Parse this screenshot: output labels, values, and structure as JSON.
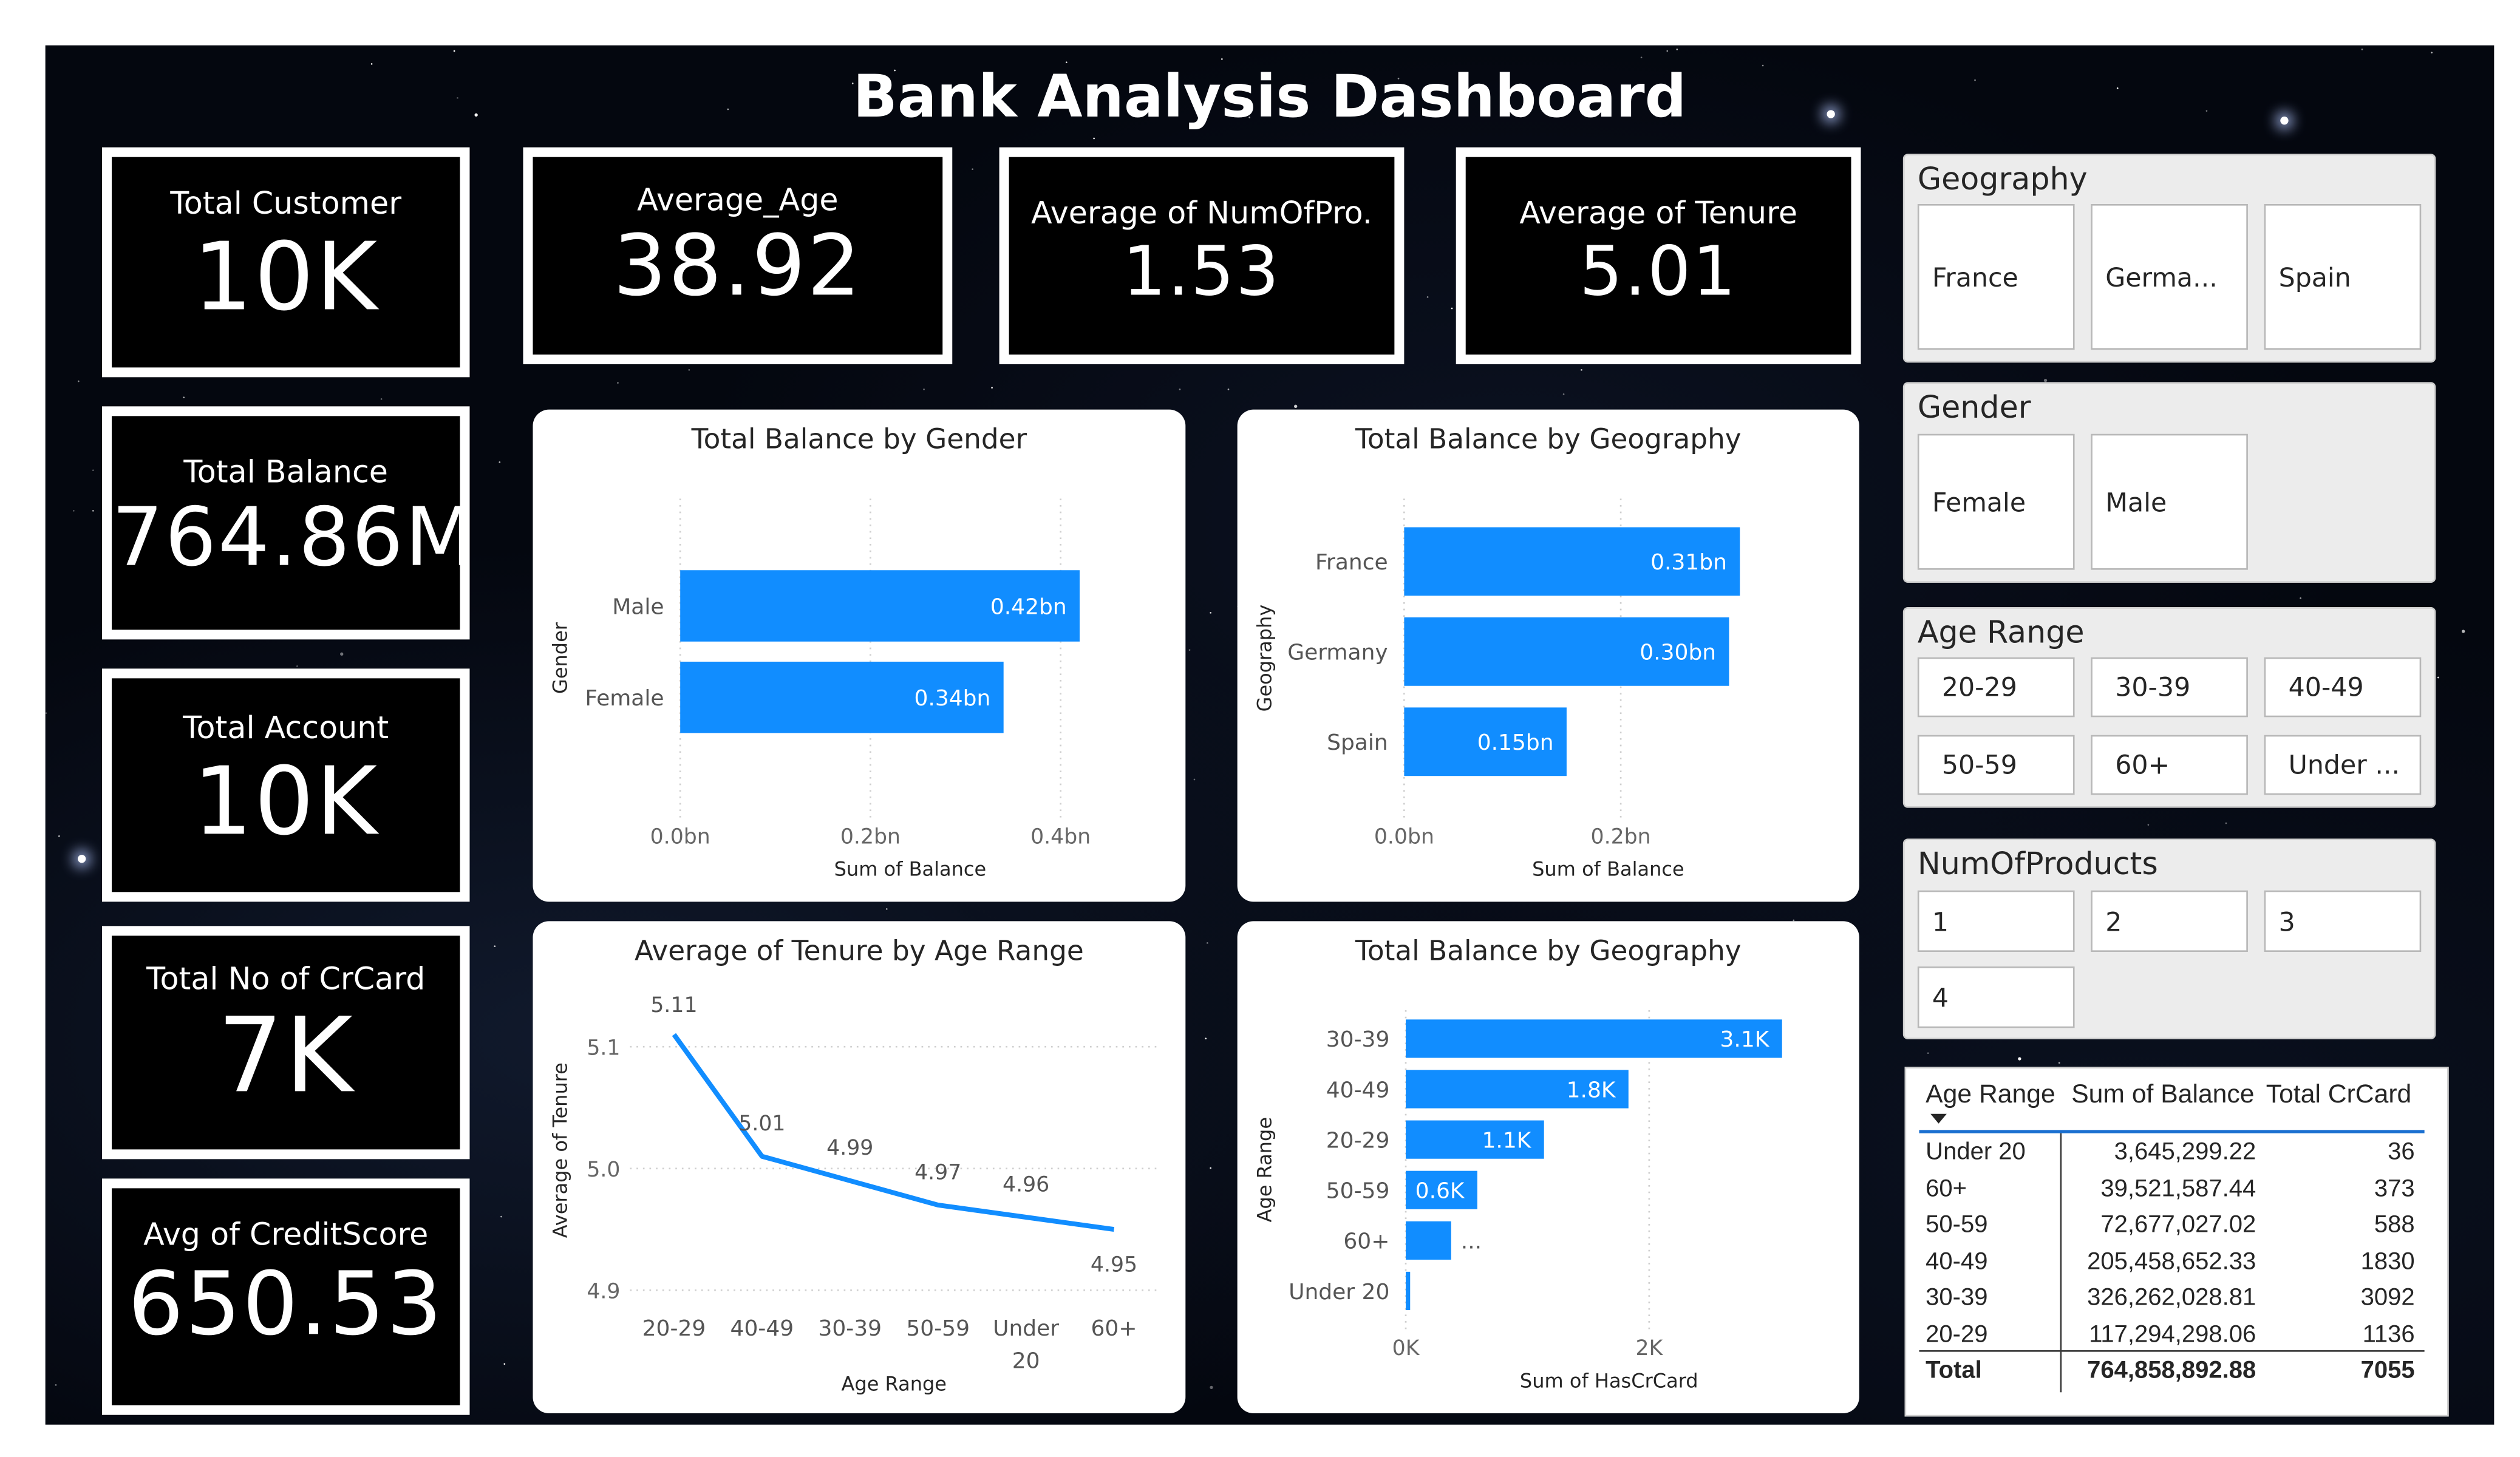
{
  "title": "Bank Analysis Dashboard",
  "kpis": {
    "total_customer": {
      "label": "Total Customer",
      "value": "10K"
    },
    "total_balance": {
      "label": "Total Balance",
      "value": "764.86M"
    },
    "total_account": {
      "label": "Total Account",
      "value": "10K"
    },
    "total_crcard": {
      "label": "Total No of CrCard",
      "value": "7K"
    },
    "avg_creditscore": {
      "label": "Avg of CreditScore",
      "value": "650.53"
    },
    "average_age": {
      "label": "Average_Age",
      "value": "38.92"
    },
    "average_numofpro": {
      "label": "Average of NumOfPro.",
      "value": "1.53"
    },
    "average_tenure": {
      "label": "Average of Tenure",
      "value": "5.01"
    }
  },
  "chart_data": [
    {
      "type": "bar",
      "orientation": "horizontal",
      "title": "Total Balance by Gender",
      "xlabel": "Sum of Balance",
      "ylabel": "Gender",
      "categories": [
        "Male",
        "Female"
      ],
      "values": [
        0.42,
        0.34
      ],
      "data_labels": [
        "0.42bn",
        "0.34bn"
      ],
      "xlim": [
        0,
        0.47
      ],
      "xticks": [
        0,
        0.2,
        0.4
      ],
      "xtick_labels": [
        "0.0bn",
        "0.2bn",
        "0.4bn"
      ],
      "color": "#118DFF",
      "grid": true
    },
    {
      "type": "bar",
      "orientation": "horizontal",
      "title": "Total Balance by Geography",
      "xlabel": "Sum of Balance",
      "ylabel": "Geography",
      "categories": [
        "France",
        "Germany",
        "Spain"
      ],
      "values": [
        0.31,
        0.3,
        0.15
      ],
      "data_labels": [
        "0.31bn",
        "0.30bn",
        "0.15bn"
      ],
      "xlim": [
        0,
        0.32
      ],
      "xticks": [
        0,
        0.2
      ],
      "xtick_labels": [
        "0.0bn",
        "0.2bn"
      ],
      "color": "#118DFF",
      "grid": true
    },
    {
      "type": "line",
      "title": "Average of Tenure by Age Range",
      "xlabel": "Age Range",
      "ylabel": "Average of Tenure",
      "categories": [
        "20-29",
        "40-49",
        "30-39",
        "50-59",
        "Under 20",
        "60+"
      ],
      "values": [
        5.11,
        5.01,
        4.99,
        4.97,
        4.96,
        4.95
      ],
      "data_labels": [
        "5.11",
        "5.01",
        "4.99",
        "4.97",
        "4.96",
        "4.95"
      ],
      "ylim": [
        4.9,
        5.13
      ],
      "yticks": [
        4.9,
        5.0,
        5.1
      ],
      "ytick_labels": [
        "4.9",
        "5.0",
        "5.1"
      ],
      "color": "#118DFF",
      "grid": true
    },
    {
      "type": "bar",
      "orientation": "horizontal",
      "title": "Total Balance by Geography",
      "xlabel": "Sum of HasCrCard",
      "ylabel": "Age Range",
      "categories": [
        "30-39",
        "40-49",
        "20-29",
        "50-59",
        "60+",
        "Under 20"
      ],
      "values": [
        3092,
        1830,
        1136,
        588,
        373,
        36
      ],
      "data_labels": [
        "3.1K",
        "1.8K",
        "1.1K",
        "0.6K",
        "...",
        ""
      ],
      "xlim": [
        0,
        3500
      ],
      "xticks": [
        0,
        2000
      ],
      "xtick_labels": [
        "0K",
        "2K"
      ],
      "color": "#118DFF",
      "grid": true
    }
  ],
  "slicers": {
    "geography": {
      "title": "Geography",
      "items": [
        "France",
        "Germa...",
        "Spain"
      ]
    },
    "gender": {
      "title": "Gender",
      "items": [
        "Female",
        "Male"
      ]
    },
    "age_range": {
      "title": "Age Range",
      "items": [
        "20-29",
        "30-39",
        "40-49",
        "50-59",
        "60+",
        "Under ..."
      ]
    },
    "num_products": {
      "title": "NumOfProducts",
      "items": [
        "1",
        "2",
        "3",
        "4"
      ]
    }
  },
  "table": {
    "headers": [
      "Age Range",
      "Sum of Balance",
      "Total CrCard"
    ],
    "rows": [
      [
        "Under 20",
        "3,645,299.22",
        "36"
      ],
      [
        "60+",
        "39,521,587.44",
        "373"
      ],
      [
        "50-59",
        "72,677,027.02",
        "588"
      ],
      [
        "40-49",
        "205,458,652.33",
        "1830"
      ],
      [
        "30-39",
        "326,262,028.81",
        "3092"
      ],
      [
        "20-29",
        "117,294,298.06",
        "1136"
      ]
    ],
    "total": [
      "Total",
      "764,858,892.88",
      "7055"
    ]
  }
}
